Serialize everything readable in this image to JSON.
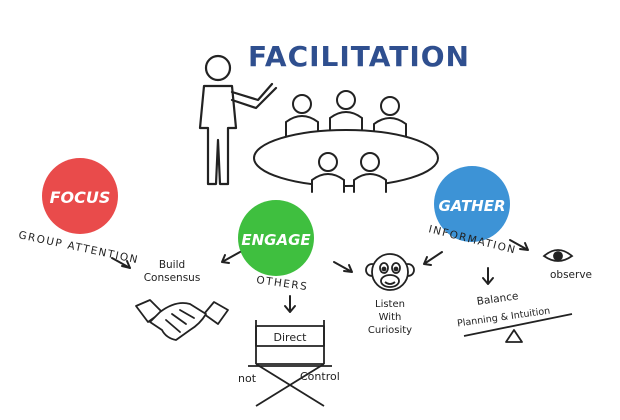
{
  "title": "FACILITATION",
  "colors": {
    "title": "#2f4f8f",
    "focus": "#e94b4b",
    "engage": "#3fbf3f",
    "gather": "#3d93d6",
    "ink": "#222222"
  },
  "focus": {
    "label": "FOCUS",
    "subtitle": "GROUP ATTENTION"
  },
  "engage": {
    "label": "ENGAGE",
    "subtitle": "OTHERS"
  },
  "gather": {
    "label": "GATHER",
    "subtitle": "INFORMATION"
  },
  "build_consensus": {
    "line1": "Build",
    "line2": "Consensus"
  },
  "listen": {
    "line1": "Listen",
    "line2": "With",
    "line3": "Curiosity"
  },
  "observe": "observe",
  "balance": {
    "line1": "Balance",
    "line2": "Planning & Intuition"
  },
  "direct": "Direct",
  "not": "not",
  "control": "Control",
  "icons": [
    "presenter-icon",
    "meeting-table-icon",
    "handshake-icon",
    "monkey-icon",
    "eye-icon",
    "seesaw-icon",
    "director-chair-icon"
  ]
}
